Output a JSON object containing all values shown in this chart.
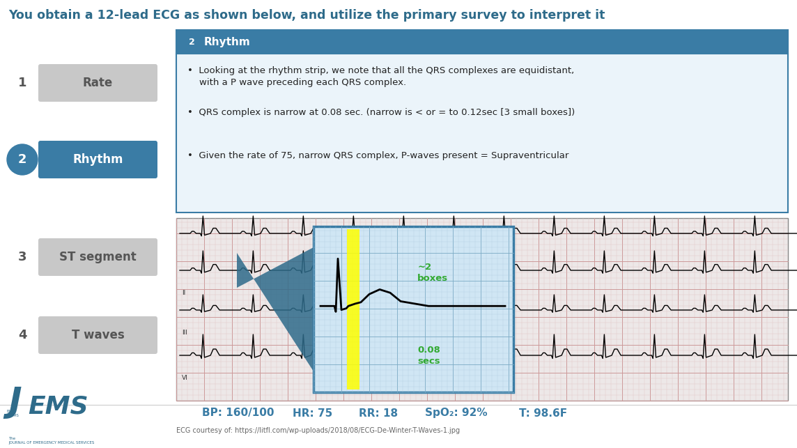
{
  "title": "You obtain a 12-lead ECG as shown below, and utilize the primary survey to interpret it",
  "title_color": "#2E6B8A",
  "title_fontsize": 12.5,
  "bg_color": "#FFFFFF",
  "left_items": [
    {
      "number": "1",
      "label": "Rate",
      "active": false
    },
    {
      "number": "2",
      "label": "Rhythm",
      "active": true
    },
    {
      "number": "3",
      "label": "ST segment",
      "active": false
    },
    {
      "number": "4",
      "label": "T waves",
      "active": false
    }
  ],
  "active_color": "#3A7CA5",
  "inactive_color": "#C8C8C8",
  "active_text_color": "#FFFFFF",
  "inactive_num_border": "#888888",
  "inactive_text_color": "#555555",
  "info_box_header": "2  Rhythm",
  "info_box_header_bg": "#3A7CA5",
  "info_box_header_text_color": "#FFFFFF",
  "info_box_bg": "#EBF4FA",
  "info_box_border": "#3A7CA5",
  "info_bullets": [
    "Looking at the rhythm strip, we note that all the QRS complexes are equidistant,\n    with a P wave preceding each QRS complex.",
    "QRS complex is narrow at 0.08 sec. (narrow is < or = to 0.12sec [3 small boxes])",
    "Given the rate of 75, narrow QRS complex, P-waves present = Supraventricular"
  ],
  "bullet_fontsize": 9.5,
  "vitals": [
    {
      "label": "BP:",
      "value": "160/100"
    },
    {
      "label": "HR:",
      "value": "75"
    },
    {
      "label": "RR:",
      "value": "18"
    },
    {
      "label": "SpO₂:",
      "value": "92%"
    },
    {
      "label": "T:",
      "value": "98.6F"
    }
  ],
  "vitals_color": "#3A7CA5",
  "ecg_credit": "ECG courtesy of: https://litfl.com/wp-uploads/2018/08/ECG-De-Winter-T-Waves-1.jpg",
  "zoom_label_color": "#33AA33",
  "ecg_bg": "#EDE8E8",
  "ecg_grid_minor": "#DFBFBF",
  "ecg_grid_major": "#CC9999",
  "zoom_box_bg": "#D0E6F4",
  "zoom_box_border": "#3A7CA5"
}
